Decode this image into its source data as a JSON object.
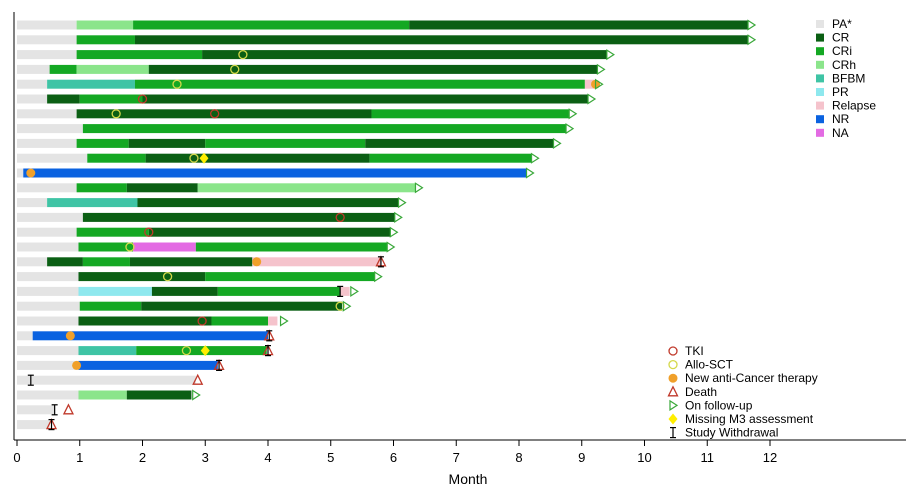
{
  "chart_data": {
    "type": "swimmer",
    "title": "",
    "xlabel": "Month",
    "ylabel": "",
    "xlim": [
      0,
      14
    ],
    "xticks": [
      0,
      1,
      2,
      3,
      4,
      5,
      6,
      7,
      8,
      9,
      10,
      11,
      12
    ],
    "colors": {
      "PA": "#e4e4e4",
      "CR": "#0b5f14",
      "CRi": "#14a823",
      "CRh": "#8be58b",
      "BFBM": "#3fc4a5",
      "PR": "#8ee8ee",
      "Relapse": "#f5c3cc",
      "NR": "#0a62e0",
      "NA": "#e36be3",
      "marker_tki": "#c0392b",
      "marker_sct": "#d4d84a",
      "marker_therapy": "#f0a02a",
      "marker_death": "#c0392b",
      "marker_followup": "#3aa83a",
      "marker_missing": "#ffee00",
      "marker_withdrawal": "#000000"
    },
    "status_legend": [
      {
        "key": "PA",
        "label": "PA*"
      },
      {
        "key": "CR",
        "label": "CR"
      },
      {
        "key": "CRi",
        "label": "CRi"
      },
      {
        "key": "CRh",
        "label": "CRh"
      },
      {
        "key": "BFBM",
        "label": "BFBM"
      },
      {
        "key": "PR",
        "label": "PR"
      },
      {
        "key": "Relapse",
        "label": "Relapse"
      },
      {
        "key": "NR",
        "label": "NR"
      },
      {
        "key": "NA",
        "label": "NA"
      }
    ],
    "marker_legend": [
      {
        "key": "tki",
        "label": "TKI"
      },
      {
        "key": "sct",
        "label": "Allo-SCT"
      },
      {
        "key": "therapy",
        "label": "New anti-Cancer therapy"
      },
      {
        "key": "death",
        "label": "Death"
      },
      {
        "key": "followup",
        "label": "On follow-up"
      },
      {
        "key": "missing",
        "label": "Missing M3 assessment"
      },
      {
        "key": "withdrawal",
        "label": "Study Withdrawal"
      }
    ],
    "patients": [
      {
        "segments": [
          [
            "PA",
            0,
            0.95
          ],
          [
            "CRh",
            0.95,
            1.85
          ],
          [
            "CRi",
            1.85,
            6.25
          ],
          [
            "CR",
            6.25,
            11.65
          ]
        ],
        "markers": [
          [
            "followup",
            11.65
          ]
        ]
      },
      {
        "segments": [
          [
            "PA",
            0,
            0.95
          ],
          [
            "CRi",
            0.95,
            1.88
          ],
          [
            "CR",
            1.88,
            11.65
          ]
        ],
        "markers": [
          [
            "followup",
            11.65
          ]
        ]
      },
      {
        "segments": [
          [
            "PA",
            0,
            0.95
          ],
          [
            "CRi",
            0.95,
            2.95
          ],
          [
            "CR",
            2.95,
            9.4
          ]
        ],
        "markers": [
          [
            "sct",
            3.6
          ],
          [
            "followup",
            9.4
          ]
        ]
      },
      {
        "segments": [
          [
            "PA",
            0,
            0.52
          ],
          [
            "CRi",
            0.52,
            0.95
          ],
          [
            "CRh",
            0.95,
            2.1
          ],
          [
            "CR",
            2.1,
            9.25
          ]
        ],
        "markers": [
          [
            "sct",
            3.47
          ],
          [
            "followup",
            9.25
          ]
        ]
      },
      {
        "segments": [
          [
            "PA",
            0,
            0.48
          ],
          [
            "BFBM",
            0.48,
            1.88
          ],
          [
            "CRi",
            1.88,
            9.05
          ],
          [
            "Relapse",
            9.05,
            9.2
          ]
        ],
        "markers": [
          [
            "sct",
            2.55
          ],
          [
            "therapy",
            9.22
          ],
          [
            "followup",
            9.22
          ]
        ]
      },
      {
        "segments": [
          [
            "PA",
            0,
            0.48
          ],
          [
            "CR",
            0.48,
            1.0
          ],
          [
            "CRi",
            1.0,
            2.0
          ],
          [
            "CR",
            2.0,
            9.1
          ]
        ],
        "markers": [
          [
            "tki",
            2.0
          ],
          [
            "followup",
            9.1
          ]
        ]
      },
      {
        "segments": [
          [
            "PA",
            0,
            0.95
          ],
          [
            "CR",
            0.95,
            5.65
          ],
          [
            "CRi",
            5.65,
            8.8
          ]
        ],
        "markers": [
          [
            "sct",
            1.58
          ],
          [
            "tki",
            3.15
          ],
          [
            "followup",
            8.8
          ]
        ]
      },
      {
        "segments": [
          [
            "PA",
            0,
            1.05
          ],
          [
            "CRi",
            1.05,
            8.75
          ]
        ],
        "markers": [
          [
            "followup",
            8.75
          ]
        ]
      },
      {
        "segments": [
          [
            "PA",
            0,
            0.95
          ],
          [
            "CRi",
            0.95,
            1.78
          ],
          [
            "CR",
            1.78,
            3.0
          ],
          [
            "CRi",
            3.0,
            5.55
          ],
          [
            "CR",
            5.55,
            8.55
          ]
        ],
        "markers": [
          [
            "followup",
            8.55
          ]
        ]
      },
      {
        "segments": [
          [
            "PA",
            0,
            1.12
          ],
          [
            "CRi",
            1.12,
            2.05
          ],
          [
            "CR",
            2.05,
            5.62
          ],
          [
            "CRi",
            5.62,
            8.2
          ]
        ],
        "markers": [
          [
            "sct",
            2.82
          ],
          [
            "missing",
            2.98
          ],
          [
            "followup",
            8.2
          ]
        ]
      },
      {
        "segments": [
          [
            "PA",
            0,
            0.1
          ],
          [
            "NR",
            0.1,
            8.12
          ]
        ],
        "markers": [
          [
            "therapy",
            0.22
          ],
          [
            "followup",
            8.12
          ]
        ]
      },
      {
        "segments": [
          [
            "PA",
            0,
            0.95
          ],
          [
            "CRi",
            0.95,
            1.75
          ],
          [
            "CR",
            1.75,
            2.88
          ],
          [
            "CRh",
            2.88,
            6.35
          ]
        ],
        "markers": [
          [
            "followup",
            6.35
          ]
        ]
      },
      {
        "segments": [
          [
            "PA",
            0,
            0.48
          ],
          [
            "BFBM",
            0.48,
            1.92
          ],
          [
            "CR",
            1.92,
            6.08
          ]
        ],
        "markers": [
          [
            "followup",
            6.08
          ]
        ]
      },
      {
        "segments": [
          [
            "PA",
            0,
            1.05
          ],
          [
            "CR",
            1.05,
            6.02
          ]
        ],
        "markers": [
          [
            "tki",
            5.15
          ],
          [
            "followup",
            6.02
          ]
        ]
      },
      {
        "segments": [
          [
            "PA",
            0,
            0.95
          ],
          [
            "CRi",
            0.95,
            2.1
          ],
          [
            "CR",
            2.1,
            5.95
          ]
        ],
        "markers": [
          [
            "tki",
            2.1
          ],
          [
            "followup",
            5.95
          ]
        ]
      },
      {
        "segments": [
          [
            "PA",
            0,
            0.98
          ],
          [
            "CRi",
            0.98,
            1.85
          ],
          [
            "NA",
            1.85,
            2.85
          ],
          [
            "CRi",
            2.85,
            5.9
          ]
        ],
        "markers": [
          [
            "sct",
            1.8
          ],
          [
            "followup",
            5.9
          ]
        ]
      },
      {
        "segments": [
          [
            "PA",
            0,
            0.48
          ],
          [
            "CR",
            0.48,
            1.05
          ],
          [
            "CRi",
            1.05,
            1.8
          ],
          [
            "CR",
            1.8,
            3.75
          ],
          [
            "Relapse",
            3.75,
            5.8
          ]
        ],
        "markers": [
          [
            "therapy",
            3.82
          ],
          [
            "death",
            5.8
          ],
          [
            "withdrawal",
            5.8
          ]
        ]
      },
      {
        "segments": [
          [
            "PA",
            0,
            0.98
          ],
          [
            "CR",
            0.98,
            3.0
          ],
          [
            "CRi",
            3.0,
            5.7
          ]
        ],
        "markers": [
          [
            "sct",
            2.4
          ],
          [
            "followup",
            5.7
          ]
        ]
      },
      {
        "segments": [
          [
            "PA",
            0,
            0.98
          ],
          [
            "PR",
            0.98,
            2.15
          ],
          [
            "CR",
            2.15,
            3.2
          ],
          [
            "CRi",
            3.2,
            5.15
          ],
          [
            "Relapse",
            5.15,
            5.3
          ]
        ],
        "markers": [
          [
            "withdrawal",
            5.15
          ],
          [
            "followup",
            5.32
          ]
        ]
      },
      {
        "segments": [
          [
            "PA",
            0,
            1.0
          ],
          [
            "CRi",
            1.0,
            1.98
          ],
          [
            "CR",
            1.98,
            5.18
          ]
        ],
        "markers": [
          [
            "sct",
            5.15
          ],
          [
            "followup",
            5.2
          ]
        ]
      },
      {
        "segments": [
          [
            "PA",
            0,
            0.98
          ],
          [
            "CR",
            0.98,
            3.1
          ],
          [
            "CRi",
            3.1,
            4.0
          ],
          [
            "Relapse",
            4.0,
            4.15
          ]
        ],
        "markers": [
          [
            "tki",
            2.95
          ],
          [
            "followup",
            4.2
          ]
        ]
      },
      {
        "segments": [
          [
            "PA",
            0,
            0.25
          ],
          [
            "NR",
            0.25,
            4.0
          ]
        ],
        "markers": [
          [
            "therapy",
            0.85
          ],
          [
            "death",
            4.02
          ],
          [
            "withdrawal",
            4.02
          ]
        ]
      },
      {
        "segments": [
          [
            "PA",
            0,
            0.98
          ],
          [
            "BFBM",
            0.98,
            1.9
          ],
          [
            "CRi",
            1.9,
            3.98
          ]
        ],
        "markers": [
          [
            "sct",
            2.7
          ],
          [
            "missing",
            3.0
          ],
          [
            "death",
            4.0
          ],
          [
            "withdrawal",
            4.0
          ]
        ]
      },
      {
        "segments": [
          [
            "PA",
            0,
            0.98
          ],
          [
            "NR",
            0.98,
            3.2
          ]
        ],
        "markers": [
          [
            "therapy",
            0.95
          ],
          [
            "death",
            3.22
          ],
          [
            "withdrawal",
            3.22
          ]
        ]
      },
      {
        "segments": [
          [
            "PA",
            0,
            2.85
          ]
        ],
        "markers": [
          [
            "withdrawal",
            0.22
          ],
          [
            "death",
            2.88
          ]
        ]
      },
      {
        "segments": [
          [
            "PA",
            0,
            0.98
          ],
          [
            "CRh",
            0.98,
            1.75
          ],
          [
            "CR",
            1.75,
            2.78
          ]
        ],
        "markers": [
          [
            "followup",
            2.8
          ]
        ]
      },
      {
        "segments": [
          [
            "PA",
            0,
            0.6
          ]
        ],
        "markers": [
          [
            "withdrawal",
            0.6
          ],
          [
            "death",
            0.82
          ]
        ]
      },
      {
        "segments": [
          [
            "PA",
            0,
            0.52
          ]
        ],
        "markers": [
          [
            "death",
            0.55
          ],
          [
            "withdrawal",
            0.55
          ]
        ]
      }
    ]
  }
}
